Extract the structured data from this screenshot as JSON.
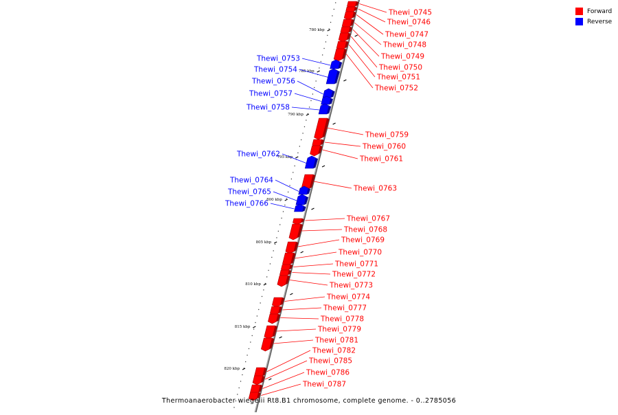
{
  "legend": [
    {
      "label": "Forward",
      "color": "#ff0000"
    },
    {
      "label": "Reverse",
      "color": "#0000ff"
    }
  ],
  "caption": "Thermoanaerobacter wiegelii Rt8.B1 chromosome, complete genome. - 0..2785056",
  "colors": {
    "forward": "#ff0000",
    "forward_dark": "#a00000",
    "reverse": "#0000ff",
    "reverse_dark": "#00009a",
    "backbone": "#888888"
  },
  "ticks": [
    {
      "label": "780 kbp"
    },
    {
      "label": "785 kbp"
    },
    {
      "label": "790 kbp"
    },
    {
      "label": "795 kbp"
    },
    {
      "label": "800 kbp"
    },
    {
      "label": "805 kbp"
    },
    {
      "label": "810 kbp"
    },
    {
      "label": "815 kbp"
    },
    {
      "label": "820 kbp"
    }
  ],
  "genes": [
    {
      "name": "Thewi_0745",
      "strand": "forward"
    },
    {
      "name": "Thewi_0746",
      "strand": "forward"
    },
    {
      "name": "Thewi_0747",
      "strand": "forward"
    },
    {
      "name": "Thewi_0748",
      "strand": "forward"
    },
    {
      "name": "Thewi_0749",
      "strand": "forward"
    },
    {
      "name": "Thewi_0750",
      "strand": "forward"
    },
    {
      "name": "Thewi_0751",
      "strand": "forward"
    },
    {
      "name": "Thewi_0752",
      "strand": "forward"
    },
    {
      "name": "Thewi_0753",
      "strand": "reverse"
    },
    {
      "name": "Thewi_0754",
      "strand": "reverse"
    },
    {
      "name": "Thewi_0756",
      "strand": "reverse"
    },
    {
      "name": "Thewi_0757",
      "strand": "reverse"
    },
    {
      "name": "Thewi_0758",
      "strand": "reverse"
    },
    {
      "name": "Thewi_0759",
      "strand": "forward"
    },
    {
      "name": "Thewi_0760",
      "strand": "forward"
    },
    {
      "name": "Thewi_0761",
      "strand": "forward"
    },
    {
      "name": "Thewi_0762",
      "strand": "reverse"
    },
    {
      "name": "Thewi_0763",
      "strand": "forward"
    },
    {
      "name": "Thewi_0764",
      "strand": "reverse"
    },
    {
      "name": "Thewi_0765",
      "strand": "reverse"
    },
    {
      "name": "Thewi_0766",
      "strand": "reverse"
    },
    {
      "name": "Thewi_0767",
      "strand": "forward"
    },
    {
      "name": "Thewi_0768",
      "strand": "forward"
    },
    {
      "name": "Thewi_0769",
      "strand": "forward"
    },
    {
      "name": "Thewi_0770",
      "strand": "forward"
    },
    {
      "name": "Thewi_0771",
      "strand": "forward"
    },
    {
      "name": "Thewi_0772",
      "strand": "forward"
    },
    {
      "name": "Thewi_0773",
      "strand": "forward"
    },
    {
      "name": "Thewi_0774",
      "strand": "forward"
    },
    {
      "name": "Thewi_0777",
      "strand": "forward"
    },
    {
      "name": "Thewi_0778",
      "strand": "forward"
    },
    {
      "name": "Thewi_0779",
      "strand": "forward"
    },
    {
      "name": "Thewi_0781",
      "strand": "forward"
    },
    {
      "name": "Thewi_0782",
      "strand": "forward"
    },
    {
      "name": "Thewi_0785",
      "strand": "forward"
    },
    {
      "name": "Thewi_0786",
      "strand": "forward"
    },
    {
      "name": "Thewi_0787",
      "strand": "forward"
    }
  ]
}
